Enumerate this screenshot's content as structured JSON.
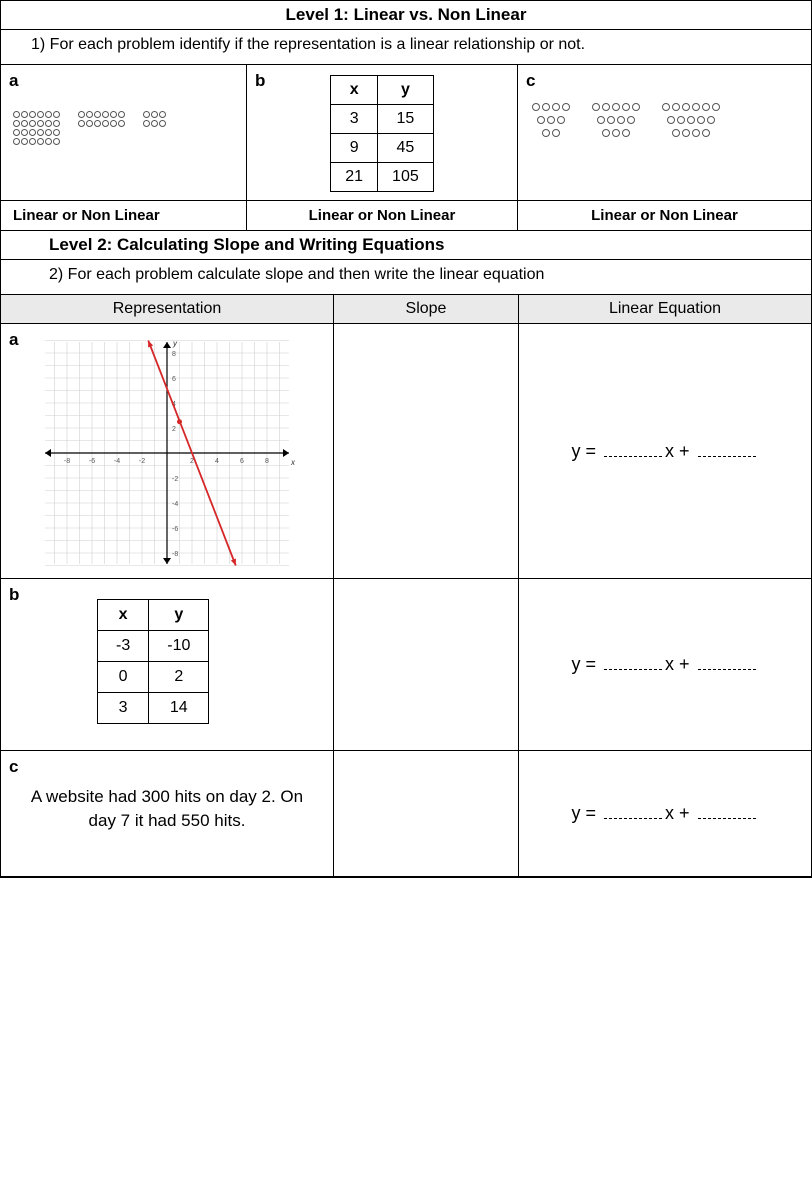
{
  "level1": {
    "title": "Level 1: Linear vs. Non Linear",
    "instruction": "1) For each problem identify if the representation is a linear relationship or not.",
    "labels": {
      "a": "a",
      "b": "b",
      "c": "c"
    },
    "table_b": {
      "headers": [
        "x",
        "y"
      ],
      "rows": [
        [
          "3",
          "15"
        ],
        [
          "9",
          "45"
        ],
        [
          "21",
          "105"
        ]
      ]
    },
    "dots_a": {
      "block1_rows": 4,
      "block1_cols": 6,
      "block2_rows": 2,
      "block2_cols": 6,
      "block3_rows": 2,
      "block3_cols": 3
    },
    "dots_c": [
      {
        "rows": [
          4,
          3,
          2
        ]
      },
      {
        "rows": [
          5,
          4,
          3
        ]
      },
      {
        "rows": [
          6,
          5,
          4
        ]
      }
    ],
    "lnl_text": "Linear or Non Linear"
  },
  "level2": {
    "title": "Level 2: Calculating Slope and Writing Equations",
    "instruction": "2) For each problem calculate slope and then write the linear equation",
    "headers": {
      "rep": "Representation",
      "slope": "Slope",
      "eq": "Linear Equation"
    },
    "eq_prefix": "y = ",
    "eq_mid": "x + ",
    "row_a": {
      "label": "a",
      "graph": {
        "x_ticks": [
          -8,
          -6,
          -4,
          -2,
          2,
          4,
          6,
          8
        ],
        "y_ticks": [
          8,
          6,
          4,
          2,
          -2,
          -4,
          -6,
          -8
        ],
        "line_color": "#d62728",
        "line_points": [
          [
            -1.5,
            9
          ],
          [
            5.5,
            -9
          ]
        ],
        "axis_labels": {
          "x": "x",
          "y": "y"
        },
        "grid_color": "#d0d0d0",
        "axis_color": "#000000",
        "bg": "#ffffff"
      }
    },
    "row_b": {
      "label": "b",
      "table": {
        "headers": [
          "x",
          "y"
        ],
        "rows": [
          [
            "-3",
            "-10"
          ],
          [
            "0",
            "2"
          ],
          [
            "3",
            "14"
          ]
        ]
      }
    },
    "row_c": {
      "label": "c",
      "text": "A website had 300 hits on day 2. On day 7 it had 550 hits."
    }
  }
}
